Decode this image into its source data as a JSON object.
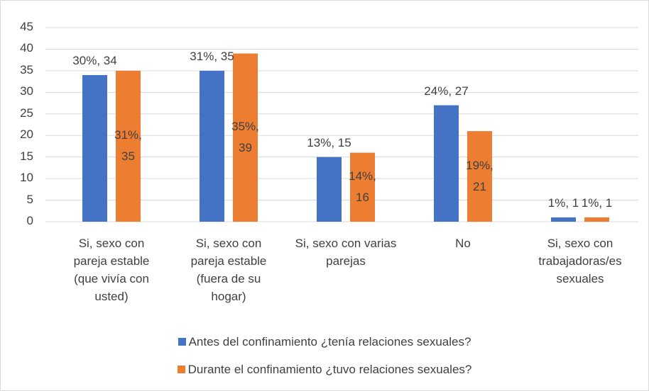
{
  "chart_data": {
    "type": "bar",
    "categories": [
      "Si, sexo con pareja estable (que vivía con usted)",
      "Si, sexo con pareja estable (fuera de su hogar)",
      "Si, sexo con varias parejas",
      "No",
      "Si, sexo con trabajadoras/es sexuales"
    ],
    "series": [
      {
        "name": "Antes del confinamiento ¿tenía relaciones sexuales?",
        "color": "#4472c4",
        "values": [
          34,
          35,
          15,
          27,
          1
        ],
        "value_labels": [
          "30%, 34",
          "31%, 35",
          "13%, 15",
          "24%, 27",
          "1%, 1"
        ]
      },
      {
        "name": "Durante el confinamiento ¿tuvo relaciones sexuales?",
        "color": "#ed7d31",
        "values": [
          35,
          39,
          16,
          21,
          1
        ],
        "value_labels": [
          "31%, 35",
          "35%, 39",
          "14%, 16",
          "19%, 21",
          "1%, 1"
        ]
      }
    ],
    "ylim": [
      0,
      45
    ],
    "yticks": [
      0,
      5,
      10,
      15,
      20,
      25,
      30,
      35,
      40,
      45
    ],
    "grid": true,
    "legend": "bottom"
  }
}
